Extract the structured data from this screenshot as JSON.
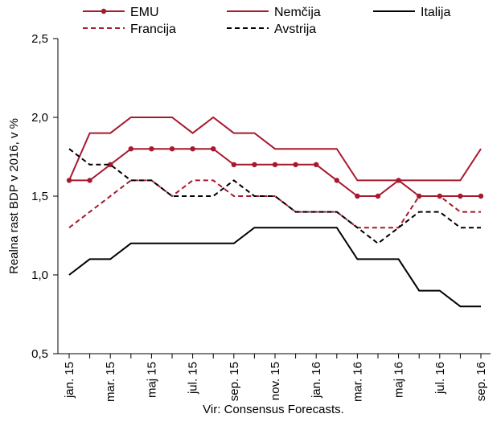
{
  "chart_data": {
    "type": "line",
    "ylabel": "Realna rast BDP v 2016, v %",
    "source": "Vir: Consensus Forecasts.",
    "ylim": [
      0.5,
      2.5
    ],
    "yticks": [
      "0,5",
      "1,0",
      "1,5",
      "2,0",
      "2,5"
    ],
    "ytick_values": [
      0.5,
      1.0,
      1.5,
      2.0,
      2.5
    ],
    "x": [
      "jan. 15",
      "feb. 15",
      "mar. 15",
      "apr. 15",
      "maj 15",
      "jun. 15",
      "jul. 15",
      "avg. 15",
      "sep. 15",
      "okt. 15",
      "nov. 15",
      "dec. 15",
      "jan. 16",
      "feb. 16",
      "mar. 16",
      "apr. 16",
      "maj 16",
      "jun. 16",
      "jul. 16",
      "avg. 16",
      "sep. 16"
    ],
    "xtick_labels": [
      "jan. 15",
      "mar. 15",
      "maj 15",
      "jul. 15",
      "sep. 15",
      "nov. 15",
      "jan. 16",
      "mar. 16",
      "maj 16",
      "jul. 16",
      "sep. 16"
    ],
    "grid": "none",
    "legend_placement": "top",
    "series": [
      {
        "name": "EMU",
        "color": "#a6192e",
        "style": "solid-markers",
        "values": [
          1.6,
          1.6,
          1.7,
          1.8,
          1.8,
          1.8,
          1.8,
          1.8,
          1.7,
          1.7,
          1.7,
          1.7,
          1.7,
          1.6,
          1.5,
          1.5,
          1.6,
          1.5,
          1.5,
          1.5,
          1.5
        ]
      },
      {
        "name": "Nemčija",
        "color": "#a6192e",
        "style": "solid",
        "values": [
          1.6,
          1.9,
          1.9,
          2.0,
          2.0,
          2.0,
          1.9,
          2.0,
          1.9,
          1.9,
          1.8,
          1.8,
          1.8,
          1.8,
          1.6,
          1.6,
          1.6,
          1.6,
          1.6,
          1.6,
          1.8
        ]
      },
      {
        "name": "Italija",
        "color": "#000000",
        "style": "solid",
        "values": [
          1.0,
          1.1,
          1.1,
          1.2,
          1.2,
          1.2,
          1.2,
          1.2,
          1.2,
          1.3,
          1.3,
          1.3,
          1.3,
          1.3,
          1.1,
          1.1,
          1.1,
          0.9,
          0.9,
          0.8,
          0.8
        ]
      },
      {
        "name": "Francija",
        "color": "#a6192e",
        "style": "dashed",
        "values": [
          1.3,
          1.4,
          1.5,
          1.6,
          1.6,
          1.5,
          1.6,
          1.6,
          1.5,
          1.5,
          1.5,
          1.4,
          1.4,
          1.4,
          1.3,
          1.3,
          1.3,
          1.5,
          1.5,
          1.4,
          1.4
        ]
      },
      {
        "name": "Avstrija",
        "color": "#000000",
        "style": "dashed",
        "values": [
          1.8,
          1.7,
          1.7,
          1.6,
          1.6,
          1.5,
          1.5,
          1.5,
          1.6,
          1.5,
          1.5,
          1.4,
          1.4,
          1.4,
          1.3,
          1.2,
          1.3,
          1.4,
          1.4,
          1.3,
          1.3
        ]
      }
    ]
  }
}
